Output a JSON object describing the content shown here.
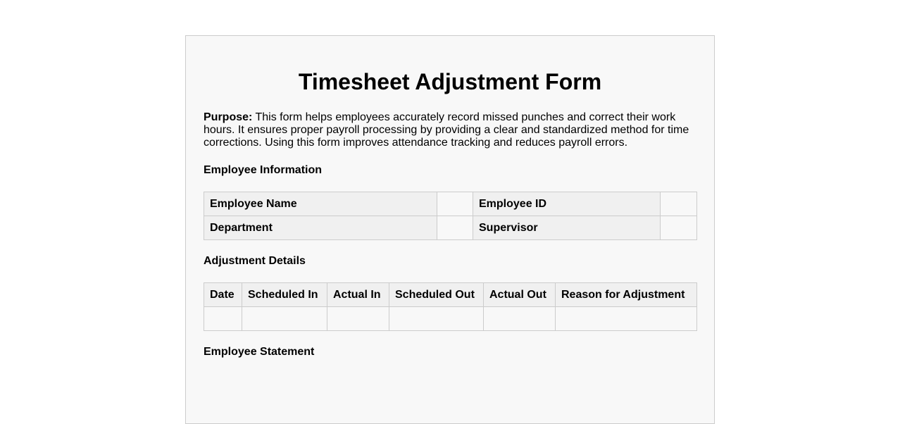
{
  "title": "Timesheet Adjustment Form",
  "purpose": {
    "label": "Purpose:",
    "text": " This form helps employees accurately record missed punches and correct their work hours. It ensures proper payroll processing by providing a clear and standardized method for time corrections. Using this form improves attendance tracking and reduces payroll errors."
  },
  "employee_info": {
    "heading": "Employee Information",
    "rows": [
      {
        "label1": "Employee Name",
        "value1": "",
        "label2": "Employee ID",
        "value2": ""
      },
      {
        "label1": "Department",
        "value1": "",
        "label2": "Supervisor",
        "value2": ""
      }
    ]
  },
  "adjustment": {
    "heading": "Adjustment Details",
    "columns": [
      "Date",
      "Scheduled In",
      "Actual In",
      "Scheduled Out",
      "Actual Out",
      "Reason for Adjustment"
    ],
    "rows": [
      [
        "",
        "",
        "",
        "",
        "",
        ""
      ]
    ]
  },
  "statement": {
    "heading": "Employee Statement"
  }
}
